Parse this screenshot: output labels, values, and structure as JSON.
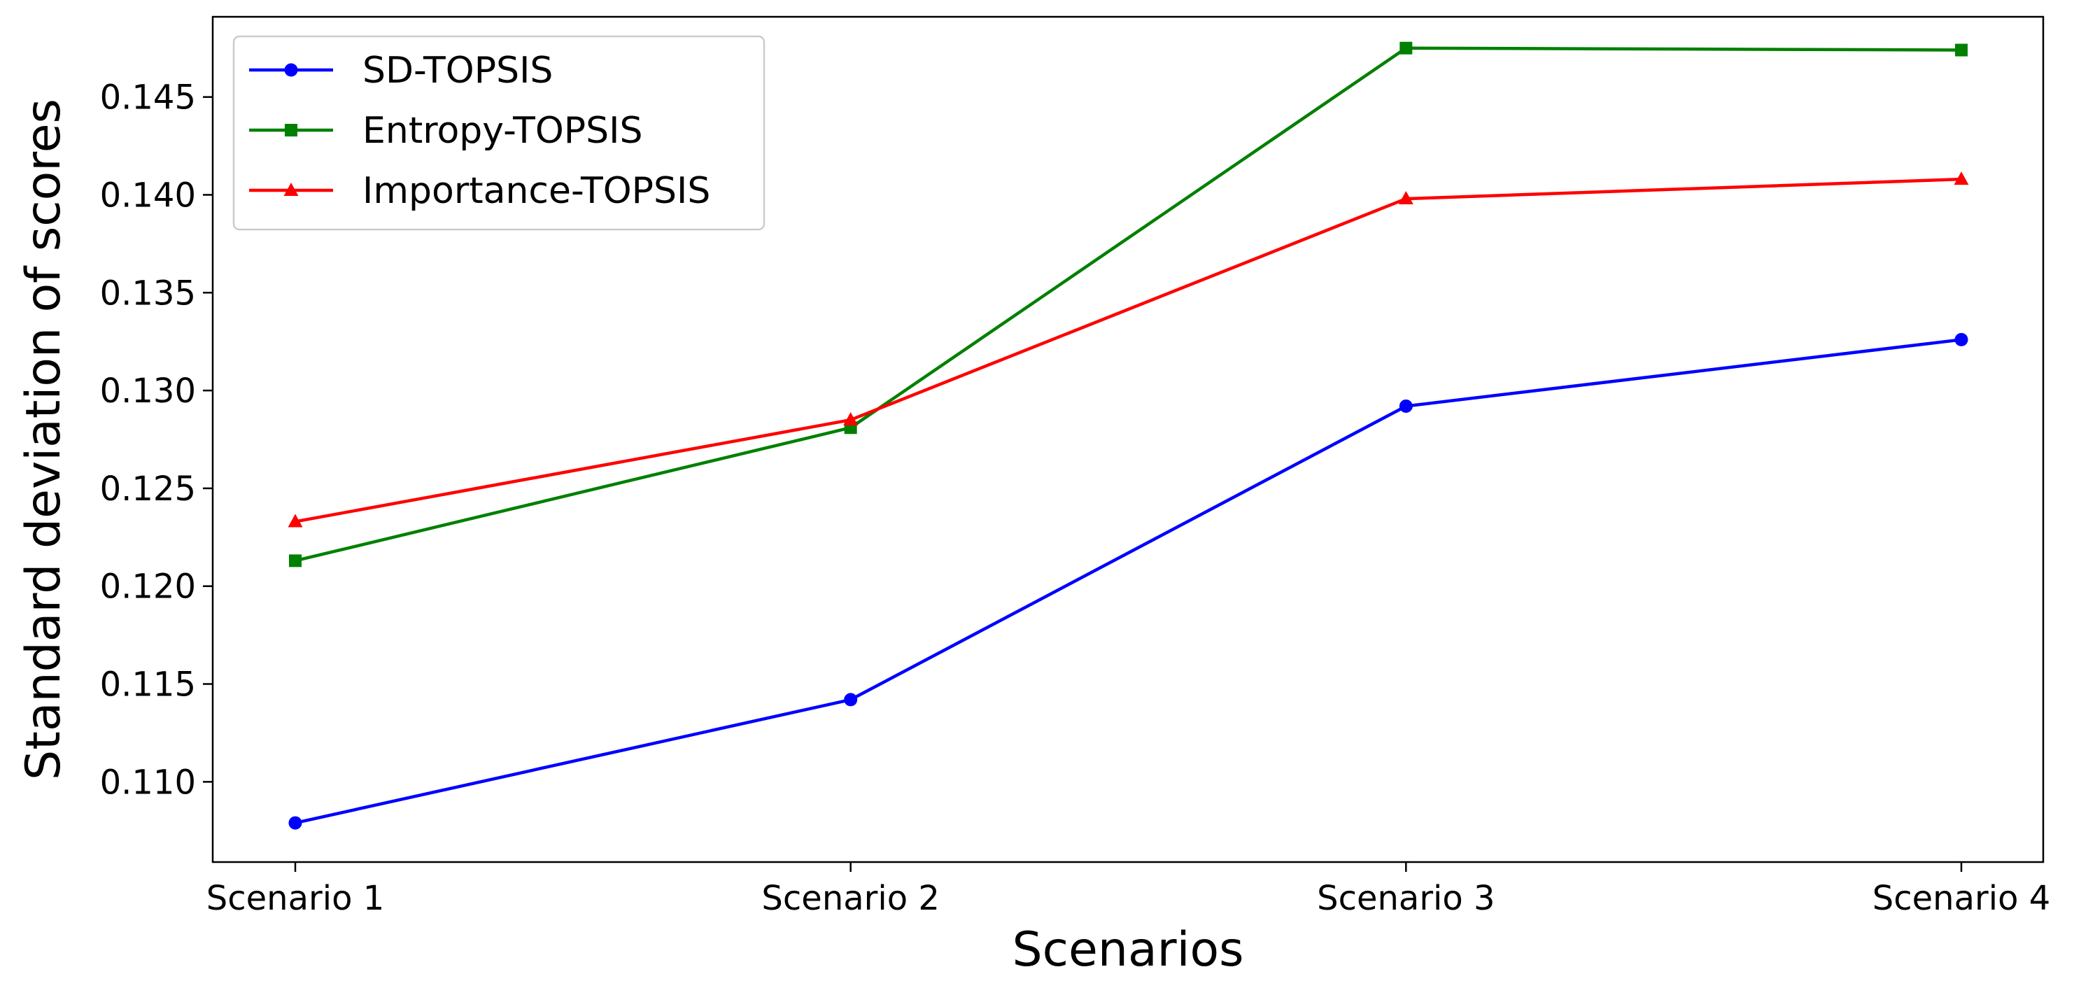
{
  "chart_data": {
    "type": "line",
    "title": "",
    "xlabel": "Scenarios",
    "ylabel": "Standard deviation of scores",
    "categories": [
      "Scenario 1",
      "Scenario 2",
      "Scenario 3",
      "Scenario 4"
    ],
    "y_ticks": [
      "0.110",
      "0.115",
      "0.120",
      "0.125",
      "0.130",
      "0.135",
      "0.140",
      "0.145"
    ],
    "ylim": [
      0.1059,
      0.1491
    ],
    "grid": false,
    "legend_position": "top-left",
    "series": [
      {
        "name": "SD-TOPSIS",
        "color": "#0000ff",
        "marker": "circle",
        "values": [
          0.1079,
          0.1142,
          0.1292,
          0.1326
        ]
      },
      {
        "name": "Entropy-TOPSIS",
        "color": "#008000",
        "marker": "square",
        "values": [
          0.1213,
          0.1281,
          0.1475,
          0.1474
        ]
      },
      {
        "name": "Importance-TOPSIS",
        "color": "#ff0000",
        "marker": "triangle",
        "values": [
          0.1233,
          0.1285,
          0.1398,
          0.1408
        ]
      }
    ]
  }
}
